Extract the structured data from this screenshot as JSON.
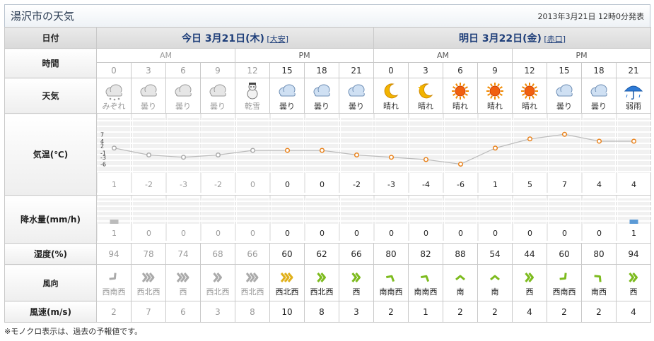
{
  "header": {
    "title": "湯沢市の天気",
    "issued": "2013年3月21日 12時0分発表"
  },
  "labels": {
    "date": "日付",
    "time": "時間",
    "weather": "天気",
    "temp": "気温(℃)",
    "precip": "降水量(mm/h)",
    "humidity": "湿度(%)",
    "wind_dir": "風向",
    "wind_speed": "風速(m/s)"
  },
  "days": [
    {
      "title": "今日 3月21日(木)",
      "rokuyo": "[大安]",
      "am": "AM",
      "pm": "PM"
    },
    {
      "title": "明日 3月22日(金)",
      "rokuyo": "[赤口]",
      "am": "AM",
      "pm": "PM"
    }
  ],
  "temp_axis": [
    "7",
    "4",
    "2",
    "-1",
    "-3",
    "-6"
  ],
  "slots": [
    {
      "hour": "0",
      "weather": "みぞれ",
      "icon": "sleet-icon",
      "temp": 1,
      "precip": 1,
      "humidity": "94",
      "wind_dir": "西南西",
      "wind_speed": "2",
      "past": true,
      "dir_angle": 45,
      "wind_level": 1
    },
    {
      "hour": "3",
      "weather": "曇り",
      "icon": "cloud-icon",
      "temp": -2,
      "precip": 0,
      "humidity": "78",
      "wind_dir": "西北西",
      "wind_speed": "7",
      "past": true,
      "dir_angle": 0,
      "wind_level": 3
    },
    {
      "hour": "6",
      "weather": "曇り",
      "icon": "cloud-icon",
      "temp": -3,
      "precip": 0,
      "humidity": "74",
      "wind_dir": "西",
      "wind_speed": "6",
      "past": true,
      "dir_angle": 0,
      "wind_level": 3
    },
    {
      "hour": "9",
      "weather": "曇り",
      "icon": "cloud-icon",
      "temp": -2,
      "precip": 0,
      "humidity": "68",
      "wind_dir": "西北西",
      "wind_speed": "3",
      "past": true,
      "dir_angle": 0,
      "wind_level": 2
    },
    {
      "hour": "12",
      "weather": "乾雪",
      "icon": "snowman-icon",
      "temp": 0,
      "precip": 0,
      "humidity": "66",
      "wind_dir": "西北西",
      "wind_speed": "8",
      "past": true,
      "dir_angle": 0,
      "wind_level": 3
    },
    {
      "hour": "15",
      "weather": "曇り",
      "icon": "cloud-icon",
      "temp": 0,
      "precip": 0,
      "humidity": "60",
      "wind_dir": "西北西",
      "wind_speed": "10",
      "past": false,
      "dir_angle": 0,
      "wind_level": 3
    },
    {
      "hour": "18",
      "weather": "曇り",
      "icon": "cloud-icon",
      "temp": 0,
      "precip": 0,
      "humidity": "62",
      "wind_dir": "西北西",
      "wind_speed": "8",
      "past": false,
      "dir_angle": 0,
      "wind_level": 2
    },
    {
      "hour": "21",
      "weather": "曇り",
      "icon": "cloud-icon",
      "temp": -2,
      "precip": 0,
      "humidity": "66",
      "wind_dir": "西",
      "wind_speed": "3",
      "past": false,
      "dir_angle": 0,
      "wind_level": 2
    },
    {
      "hour": "0",
      "weather": "晴れ",
      "icon": "moon-icon",
      "temp": -3,
      "precip": 0,
      "humidity": "80",
      "wind_dir": "南南西",
      "wind_speed": "2",
      "past": false,
      "dir_angle": -60,
      "wind_level": 1
    },
    {
      "hour": "3",
      "weather": "晴れ",
      "icon": "moon-star-icon",
      "temp": -4,
      "precip": 0,
      "humidity": "82",
      "wind_dir": "南南西",
      "wind_speed": "1",
      "past": false,
      "dir_angle": -60,
      "wind_level": 1
    },
    {
      "hour": "6",
      "weather": "晴れ",
      "icon": "sun-icon",
      "temp": -6,
      "precip": 0,
      "humidity": "88",
      "wind_dir": "南",
      "wind_speed": "2",
      "past": false,
      "dir_angle": -90,
      "wind_level": 1
    },
    {
      "hour": "9",
      "weather": "晴れ",
      "icon": "sun-icon",
      "temp": 1,
      "precip": 0,
      "humidity": "54",
      "wind_dir": "南",
      "wind_speed": "2",
      "past": false,
      "dir_angle": -90,
      "wind_level": 1
    },
    {
      "hour": "12",
      "weather": "晴れ",
      "icon": "sun-icon",
      "temp": 5,
      "precip": 0,
      "humidity": "44",
      "wind_dir": "西",
      "wind_speed": "4",
      "past": false,
      "dir_angle": 0,
      "wind_level": 2
    },
    {
      "hour": "15",
      "weather": "曇り",
      "icon": "cloud-icon",
      "temp": 7,
      "precip": 0,
      "humidity": "60",
      "wind_dir": "西南西",
      "wind_speed": "2",
      "past": false,
      "dir_angle": 45,
      "wind_level": 1
    },
    {
      "hour": "18",
      "weather": "曇り",
      "icon": "cloud-icon",
      "temp": 4,
      "precip": 0,
      "humidity": "80",
      "wind_dir": "南西",
      "wind_speed": "2",
      "past": false,
      "dir_angle": -45,
      "wind_level": 1
    },
    {
      "hour": "21",
      "weather": "弱雨",
      "icon": "umbrella-icon",
      "temp": 4,
      "precip": 1,
      "humidity": "94",
      "wind_dir": "西",
      "wind_speed": "4",
      "past": false,
      "dir_angle": 0,
      "wind_level": 2
    }
  ],
  "colors": {
    "past": "#9a9a9a",
    "temp_line": "#bbbbbb",
    "temp_point": "#e8811a",
    "wind_green": "#7dbb1e",
    "wind_yellow": "#e0b01a",
    "rain_bar": "#5b9ad6",
    "rain_bar_past": "#bbbbbb"
  },
  "footnote": "※モノクロ表示は、過去の予報値です。"
}
